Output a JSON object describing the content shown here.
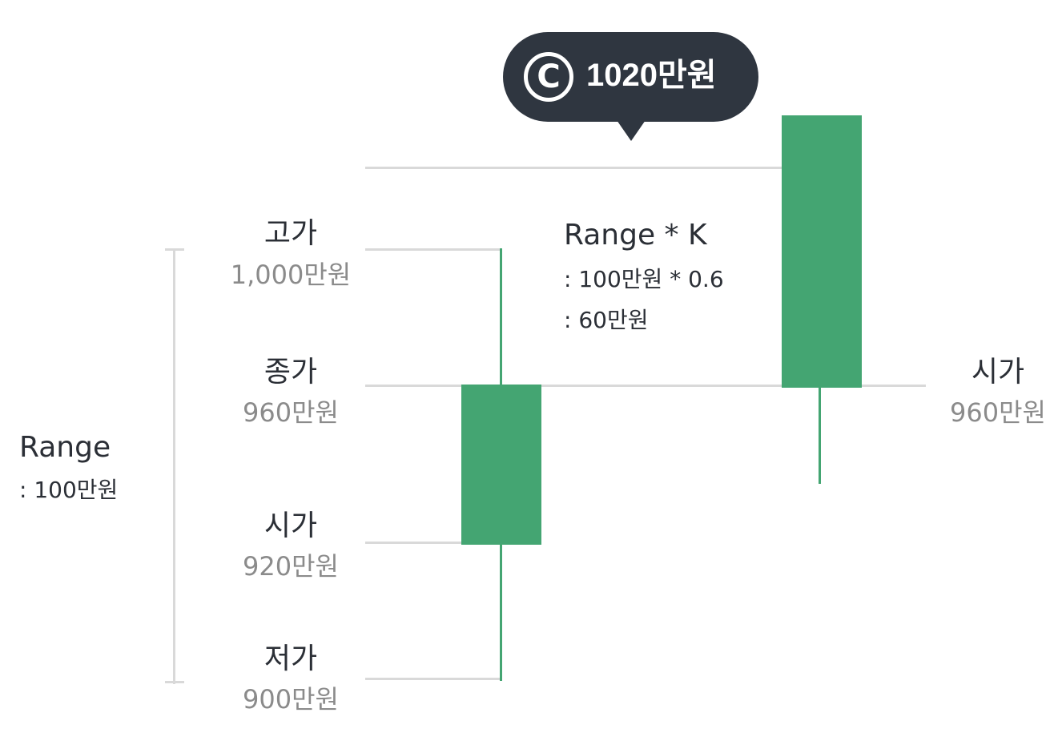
{
  "target_bubble": {
    "icon": "copyright-c-icon",
    "value": "1020만원"
  },
  "range": {
    "title": "Range",
    "value": ": 100만원"
  },
  "range_k": {
    "title": "Range * K",
    "line1": ": 100만원 * 0.6",
    "line2": ": 60만원"
  },
  "today_candle": {
    "high": {
      "title": "고가",
      "value": "1,000만원"
    },
    "close": {
      "title": "종가",
      "value": "960만원"
    },
    "open": {
      "title": "시가",
      "value": "920만원"
    },
    "low": {
      "title": "저가",
      "value": "900만원"
    }
  },
  "next_day": {
    "open": {
      "title": "시가",
      "value": "960만원"
    }
  },
  "colors": {
    "candle_green": "#44a572",
    "guide_gray": "#d9d9d9",
    "bubble_dark": "#2f3640",
    "value_gray": "#8b8b8b",
    "text_dark": "#2b2f36"
  }
}
